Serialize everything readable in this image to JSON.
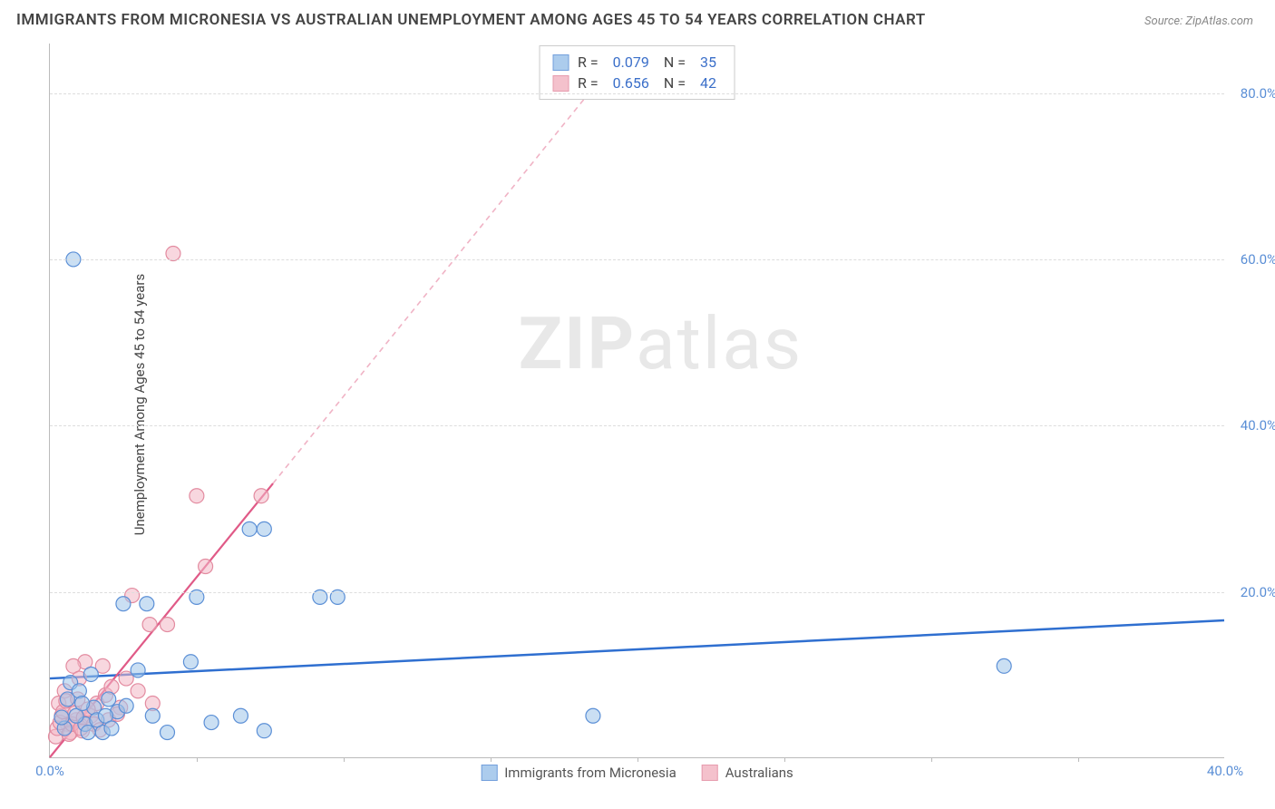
{
  "title": "IMMIGRANTS FROM MICRONESIA VS AUSTRALIAN UNEMPLOYMENT AMONG AGES 45 TO 54 YEARS CORRELATION CHART",
  "source": "Source: ZipAtlas.com",
  "watermark_bold": "ZIP",
  "watermark_light": "atlas",
  "y_axis_label": "Unemployment Among Ages 45 to 54 years",
  "chart": {
    "type": "scatter",
    "xlim": [
      0,
      40
    ],
    "ylim": [
      0,
      86
    ],
    "background_color": "#ffffff",
    "grid_color": "#dddddd",
    "axis_color": "#bbbbbb",
    "tick_label_color": "#5b8fd6",
    "xticks": [
      {
        "v": 0,
        "label": "0.0%"
      },
      {
        "v": 40,
        "label": "40.0%"
      }
    ],
    "xticks_minor": [
      5,
      10,
      15,
      20,
      25,
      30,
      35
    ],
    "yticks": [
      {
        "v": 20,
        "label": "20.0%"
      },
      {
        "v": 40,
        "label": "40.0%"
      },
      {
        "v": 60,
        "label": "60.0%"
      },
      {
        "v": 80,
        "label": "80.0%"
      }
    ],
    "series": [
      {
        "name": "Immigrants from Micronesia",
        "fill_color": "#9ec4ea",
        "stroke_color": "#5b8fd6",
        "fill_opacity": 0.55,
        "marker_radius": 8,
        "r_value": "0.079",
        "n_value": "35",
        "regression": {
          "x1": 0,
          "y1": 9.5,
          "x2": 40,
          "y2": 16.5,
          "color": "#2f6fd0",
          "width": 2.5,
          "dash": ""
        },
        "points": [
          [
            0.8,
            60.0
          ],
          [
            32.5,
            11.0
          ],
          [
            18.5,
            5.0
          ],
          [
            9.2,
            19.3
          ],
          [
            9.8,
            19.3
          ],
          [
            6.8,
            27.5
          ],
          [
            7.3,
            27.5
          ],
          [
            6.5,
            5.0
          ],
          [
            7.3,
            3.2
          ],
          [
            5.0,
            19.3
          ],
          [
            4.8,
            11.5
          ],
          [
            3.0,
            10.5
          ],
          [
            5.5,
            4.2
          ],
          [
            2.5,
            18.5
          ],
          [
            3.3,
            18.5
          ],
          [
            1.2,
            4.0
          ],
          [
            1.5,
            6.0
          ],
          [
            2.0,
            7.0
          ],
          [
            2.3,
            5.5
          ],
          [
            1.8,
            3.0
          ],
          [
            0.7,
            9.0
          ],
          [
            1.0,
            8.0
          ],
          [
            0.5,
            3.5
          ],
          [
            1.3,
            3.0
          ],
          [
            1.6,
            4.5
          ],
          [
            2.6,
            6.2
          ],
          [
            3.5,
            5.0
          ],
          [
            4.0,
            3.0
          ],
          [
            0.9,
            5.0
          ],
          [
            1.1,
            6.5
          ],
          [
            1.9,
            5.0
          ],
          [
            2.1,
            3.5
          ],
          [
            0.4,
            4.8
          ],
          [
            0.6,
            7.0
          ],
          [
            1.4,
            10.0
          ]
        ]
      },
      {
        "name": "Australians",
        "fill_color": "#f3b7c4",
        "stroke_color": "#e38ba0",
        "fill_opacity": 0.55,
        "marker_radius": 8,
        "r_value": "0.656",
        "n_value": "42",
        "regression_solid": {
          "x1": 0,
          "y1": 0,
          "x2": 7.6,
          "y2": 33.0,
          "color": "#e05a87",
          "width": 2.2
        },
        "regression_dashed": {
          "x1": 7.6,
          "y1": 33.0,
          "x2": 19.5,
          "y2": 85.0,
          "color": "#f0b3c5",
          "width": 1.6,
          "dash": "6 5"
        },
        "points": [
          [
            4.2,
            60.7
          ],
          [
            7.2,
            31.5
          ],
          [
            5.0,
            31.5
          ],
          [
            5.3,
            23.0
          ],
          [
            4.0,
            16.0
          ],
          [
            3.4,
            16.0
          ],
          [
            2.8,
            19.5
          ],
          [
            1.8,
            11.0
          ],
          [
            1.2,
            11.5
          ],
          [
            0.8,
            11.0
          ],
          [
            1.0,
            9.5
          ],
          [
            0.5,
            8.0
          ],
          [
            0.3,
            6.5
          ],
          [
            0.4,
            5.0
          ],
          [
            0.6,
            4.0
          ],
          [
            0.7,
            3.0
          ],
          [
            0.9,
            4.5
          ],
          [
            1.1,
            3.2
          ],
          [
            1.4,
            5.0
          ],
          [
            1.6,
            6.5
          ],
          [
            1.9,
            7.5
          ],
          [
            2.1,
            8.5
          ],
          [
            2.4,
            6.0
          ],
          [
            2.6,
            9.5
          ],
          [
            0.2,
            2.5
          ],
          [
            0.25,
            3.5
          ],
          [
            0.35,
            4.2
          ],
          [
            0.45,
            5.5
          ],
          [
            0.55,
            6.8
          ],
          [
            0.65,
            2.8
          ],
          [
            0.75,
            4.0
          ],
          [
            0.85,
            5.3
          ],
          [
            0.95,
            7.0
          ],
          [
            1.05,
            3.5
          ],
          [
            1.15,
            4.8
          ],
          [
            1.3,
            5.8
          ],
          [
            1.5,
            4.0
          ],
          [
            1.7,
            3.3
          ],
          [
            2.0,
            4.5
          ],
          [
            2.3,
            5.2
          ],
          [
            3.0,
            8.0
          ],
          [
            3.5,
            6.5
          ]
        ]
      }
    ]
  },
  "legend_labels": {
    "r_prefix": "R =",
    "n_prefix": "N =",
    "series1": "Immigrants from Micronesia",
    "series2": "Australians"
  }
}
